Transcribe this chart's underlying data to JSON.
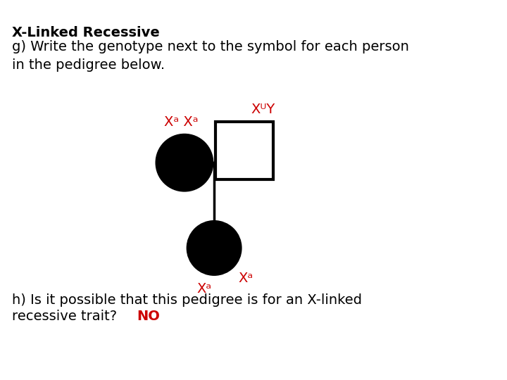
{
  "title_bold": "X-Linked Recessive",
  "subtitle": "g) Write the genotype next to the symbol for each person\nin the pedigree below.",
  "bg_color": "#ffffff",
  "text_color_black": "#000000",
  "text_color_red": "#cc0000",
  "female_label": "Xᵃ Xᵃ",
  "male_label": "XᵁY",
  "child_label1": "Xᵃ",
  "child_label2": "Xᵃ",
  "bottom_text_black": "h) Is it possible that this pedigree is for an X-linked\nrecessive trait?  ",
  "bottom_text_red": "NO",
  "font_size_main": 14,
  "font_size_label": 14
}
